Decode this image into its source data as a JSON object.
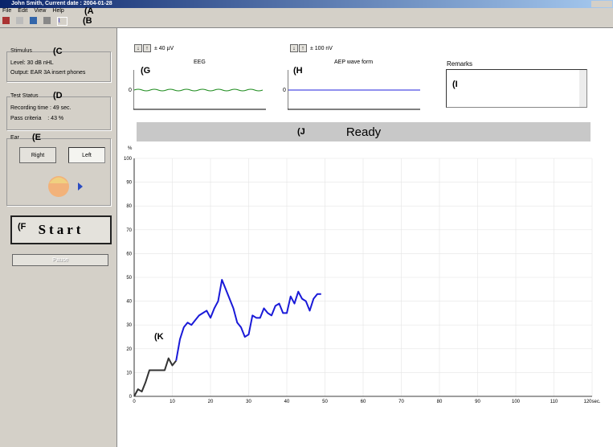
{
  "window": {
    "title": "John Smith, Current date : 2004-01-28"
  },
  "menu": [
    "File",
    "Edit",
    "View",
    "Help"
  ],
  "callouts": [
    "(A",
    "(B",
    "(C",
    "(D",
    "(E",
    "(F",
    "(G",
    "(H",
    "(I",
    "(J",
    "(K"
  ],
  "stimulus": {
    "heading": "Stimulus",
    "level": "Level: 30 dB nHL",
    "output": "Output: EAR 3A insert phones"
  },
  "test_status": {
    "heading": "Test Status",
    "recording_time": "Recording time : 49 sec.",
    "pass_criteria": "Pass criteria    : 43 %"
  },
  "ear": {
    "heading": "Ear",
    "buttons": [
      "Right",
      "Left"
    ]
  },
  "start_button": "Start",
  "pause_button": "Pause",
  "eeg": {
    "range": "± 40 µV",
    "title": "EEG",
    "zero_label": 0
  },
  "aep": {
    "range": "± 100 nV",
    "title": "AEP wave form",
    "zero_label": 0
  },
  "remarks": {
    "title": "Remarks"
  },
  "status": "Ready",
  "chart_data": {
    "type": "line",
    "y_unit": "%",
    "grid": true,
    "xlim": [
      0,
      120
    ],
    "ylim": [
      0,
      100
    ],
    "xticks": [
      0,
      10,
      20,
      30,
      40,
      50,
      60,
      70,
      80,
      90,
      100,
      110,
      {
        "value": 120,
        "label": "120sec."
      }
    ],
    "yticks": [
      0,
      10,
      20,
      30,
      40,
      50,
      60,
      70,
      80,
      90,
      100
    ],
    "series": [
      {
        "color": "#333333",
        "x": [
          0,
          1,
          2,
          3,
          4,
          5,
          6,
          7,
          8,
          9,
          10,
          11
        ],
        "values": [
          0,
          3,
          2,
          6,
          11,
          11,
          11,
          11,
          11,
          16,
          13,
          15
        ]
      },
      {
        "color": "#1a1ad8",
        "x": [
          11,
          12,
          13,
          14,
          15,
          16,
          17,
          18,
          19,
          20,
          21,
          22,
          23,
          24,
          25,
          26,
          27,
          28,
          29,
          30,
          31,
          32,
          33,
          34,
          35,
          36,
          37,
          38,
          39,
          40,
          41,
          42,
          43,
          44,
          45,
          46,
          47,
          48,
          49
        ],
        "values": [
          15,
          24,
          29,
          31,
          30,
          32,
          34,
          35,
          36,
          33,
          37,
          40,
          49,
          45,
          41,
          37,
          31,
          29,
          25,
          26,
          34,
          33,
          33,
          37,
          35,
          34,
          38,
          39,
          35,
          35,
          42,
          39,
          44,
          41,
          40,
          36,
          41,
          43,
          43
        ]
      }
    ]
  }
}
